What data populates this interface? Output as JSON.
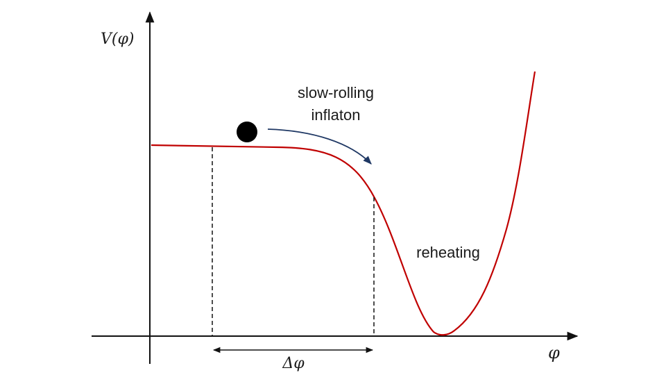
{
  "labels": {
    "y_axis": "V(φ)",
    "x_axis": "φ",
    "slow_roll_line1": "slow-rolling",
    "slow_roll_line2": "inflaton",
    "reheating": "reheating",
    "delta": "Δφ"
  },
  "colors": {
    "potential_curve": "#c00000",
    "arrow": "#1f3864",
    "axes": "#111111",
    "ball": "#000000"
  }
}
